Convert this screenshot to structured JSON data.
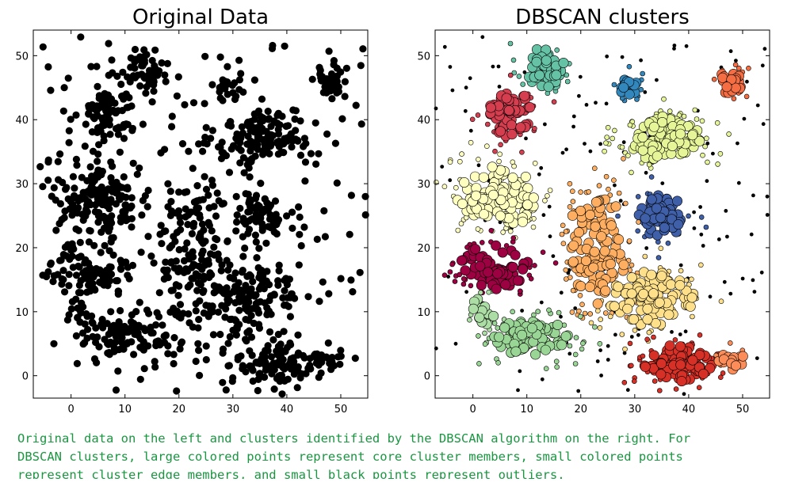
{
  "caption": "Original data on the left and clusters identified by the DBSCAN algorithm on the right. For\nDBSCAN clusters, large colored points represent core cluster members, small colored points\nrepresent cluster edge members, and small black points represent outliers.",
  "chart_data": [
    {
      "type": "scatter",
      "title": "Original Data",
      "xlabel": "",
      "ylabel": "",
      "xlim": [
        -7,
        55
      ],
      "ylim": [
        -3.5,
        54
      ],
      "xticks": [
        0,
        10,
        20,
        30,
        40,
        50
      ],
      "yticks": [
        0,
        10,
        20,
        30,
        40,
        50
      ],
      "grid": false,
      "color": "#000000"
    },
    {
      "type": "scatter",
      "title": "DBSCAN clusters",
      "xlabel": "",
      "ylabel": "",
      "xlim": [
        -7,
        55
      ],
      "ylim": [
        -3.5,
        54
      ],
      "xticks": [
        0,
        10,
        20,
        30,
        40,
        50
      ],
      "yticks": [
        0,
        10,
        20,
        30,
        40,
        50
      ],
      "grid": false,
      "outlier_color": "#000000",
      "clusters": [
        {
          "center": [
            13,
            48
          ],
          "spread": [
            2.5,
            2.0
          ],
          "n": 55,
          "color": "#66c2a5"
        },
        {
          "center": [
            29,
            45
          ],
          "spread": [
            1.2,
            1.3
          ],
          "n": 25,
          "color": "#3288bd"
        },
        {
          "center": [
            48,
            46
          ],
          "spread": [
            1.5,
            1.3
          ],
          "n": 40,
          "color": "#f46d43"
        },
        {
          "center": [
            7,
            41
          ],
          "spread": [
            2.5,
            2.3
          ],
          "n": 90,
          "color": "#d53e4f"
        },
        {
          "center": [
            36,
            37
          ],
          "spread": [
            4.5,
            2.3
          ],
          "n": 140,
          "color": "#e6f598"
        },
        {
          "center": [
            5,
            28
          ],
          "spread": [
            5.0,
            3.0
          ],
          "n": 150,
          "color": "#ffffbf"
        },
        {
          "center": [
            35,
            25
          ],
          "spread": [
            2.8,
            2.0
          ],
          "n": 70,
          "color": "#3f5fa8"
        },
        {
          "center": [
            23,
            20
          ],
          "spread": [
            3.5,
            5.5
          ],
          "n": 150,
          "color": "#fdae61"
        },
        {
          "center": [
            4,
            17
          ],
          "spread": [
            4.0,
            2.2
          ],
          "n": 100,
          "color": "#9e0142"
        },
        {
          "center": [
            33,
            12
          ],
          "spread": [
            5.0,
            2.8
          ],
          "n": 140,
          "color": "#fee08b"
        },
        {
          "center": [
            2,
            10
          ],
          "spread": [
            1.3,
            1.8
          ],
          "n": 25,
          "color": "#abdda4"
        },
        {
          "center": [
            11,
            6
          ],
          "spread": [
            4.5,
            1.8
          ],
          "n": 110,
          "color": "#99d594"
        },
        {
          "center": [
            38,
            2
          ],
          "spread": [
            4.0,
            1.8
          ],
          "n": 120,
          "color": "#d73027"
        },
        {
          "center": [
            48,
            2.5
          ],
          "spread": [
            1.5,
            1.0
          ],
          "n": 20,
          "color": "#fc8d59"
        }
      ],
      "noise": {
        "n": 160,
        "xlim": [
          -7,
          55
        ],
        "ylim": [
          -3,
          53
        ]
      }
    }
  ]
}
